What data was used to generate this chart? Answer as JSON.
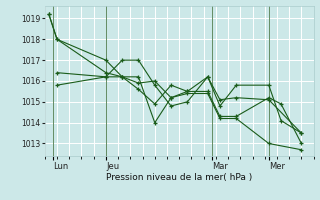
{
  "bg_color": "#cce8e8",
  "grid_color": "#ffffff",
  "line_color": "#1a5c1a",
  "xlabel": "Pression niveau de la mer( hPa )",
  "ylim": [
    1012.4,
    1019.6
  ],
  "yticks": [
    1013,
    1014,
    1015,
    1016,
    1017,
    1018,
    1019
  ],
  "day_labels": [
    "Lun",
    "Jeu",
    "Mar",
    "Mer"
  ],
  "day_positions": [
    0.5,
    7,
    20,
    27
  ],
  "xlim": [
    -0.5,
    32
  ],
  "series": [
    {
      "x": [
        0,
        1,
        7,
        9,
        11,
        13,
        15,
        17,
        19.5,
        21,
        23,
        27,
        31
      ],
      "y": [
        1019.2,
        1018.0,
        1017.0,
        1016.2,
        1015.9,
        1016.0,
        1015.2,
        1015.4,
        1015.4,
        1014.2,
        1014.2,
        1013.0,
        1012.7
      ]
    },
    {
      "x": [
        0,
        1,
        7,
        9,
        11,
        13,
        15,
        17,
        19.5,
        21,
        23,
        27,
        31
      ],
      "y": [
        1019.2,
        1018.0,
        1016.4,
        1016.2,
        1015.6,
        1014.9,
        1015.8,
        1015.5,
        1016.2,
        1015.1,
        1015.2,
        1015.1,
        1013.5
      ]
    },
    {
      "x": [
        1,
        7,
        9,
        11,
        13,
        15,
        17,
        19.5,
        21,
        23,
        27,
        28.5,
        31
      ],
      "y": [
        1016.4,
        1016.2,
        1017.0,
        1017.0,
        1015.8,
        1014.8,
        1015.0,
        1016.2,
        1014.8,
        1015.8,
        1015.8,
        1014.1,
        1013.5
      ]
    },
    {
      "x": [
        1,
        7,
        9,
        11,
        13,
        15,
        17,
        19.5,
        21,
        23,
        27,
        28.5,
        31
      ],
      "y": [
        1015.8,
        1016.2,
        1016.2,
        1016.2,
        1014.0,
        1015.2,
        1015.5,
        1015.5,
        1014.3,
        1014.3,
        1015.2,
        1014.9,
        1013.0
      ]
    }
  ]
}
